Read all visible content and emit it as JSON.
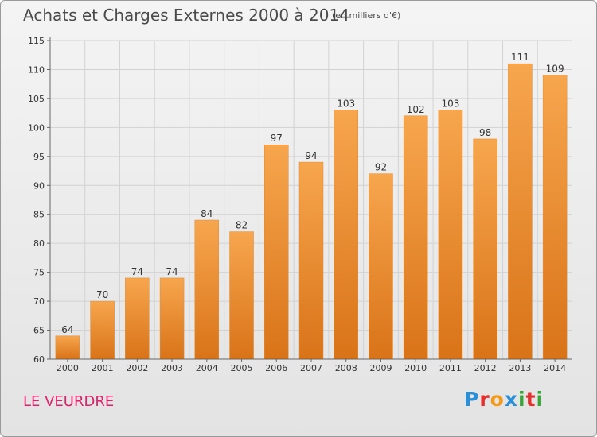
{
  "header": {
    "title": "Achats et Charges Externes 2000 à 2014",
    "subtitle": "(en milliers d'€)"
  },
  "footer": {
    "commune": "LE VEURDRE",
    "logo": "Proxiti"
  },
  "colors": {
    "bar_top": "#f7a64e",
    "bar_bottom": "#d97318",
    "commune_text": "#e0206b"
  },
  "chart_data": {
    "type": "bar",
    "categories": [
      "2000",
      "2001",
      "2002",
      "2003",
      "2004",
      "2005",
      "2006",
      "2007",
      "2008",
      "2009",
      "2010",
      "2011",
      "2012",
      "2013",
      "2014"
    ],
    "values": [
      64,
      70,
      74,
      74,
      84,
      82,
      97,
      94,
      103,
      92,
      102,
      103,
      98,
      111,
      109
    ],
    "title": "Achats et Charges Externes 2000 à 2014",
    "ylim": [
      60,
      115
    ],
    "yticks": [
      60,
      65,
      70,
      75,
      80,
      85,
      90,
      95,
      100,
      105,
      110,
      115
    ],
    "grid": true
  }
}
